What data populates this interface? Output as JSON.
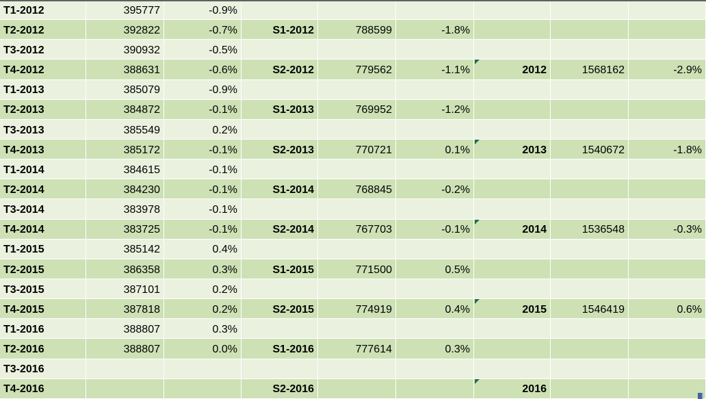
{
  "colors": {
    "row_light": "#EBF1DF",
    "row_dark": "#CDE1B5",
    "gridline": "#FFFFFF",
    "error_flag_green": "#1E7145",
    "top_edge_line": "#606060",
    "object_corner_blue": "#46619B",
    "object_corner_blue_light": "#9DB4D6",
    "text": "#000000"
  },
  "table": {
    "columns": [
      {
        "name": "quarter",
        "align": "left",
        "bold": true
      },
      {
        "name": "quarter-value",
        "align": "right",
        "bold": false
      },
      {
        "name": "quarter-pct",
        "align": "right",
        "bold": false
      },
      {
        "name": "semester",
        "align": "right",
        "bold": true
      },
      {
        "name": "semester-value",
        "align": "right",
        "bold": false
      },
      {
        "name": "semester-pct",
        "align": "right",
        "bold": false
      },
      {
        "name": "year",
        "align": "right",
        "bold": true
      },
      {
        "name": "year-value",
        "align": "right",
        "bold": false
      },
      {
        "name": "year-pct",
        "align": "right",
        "bold": false
      }
    ],
    "rows": [
      {
        "cells": [
          "T1-2012",
          "395777",
          "-0.9%",
          "",
          "",
          "",
          "",
          "",
          ""
        ],
        "year_flag": false
      },
      {
        "cells": [
          "T2-2012",
          "392822",
          "-0.7%",
          "S1-2012",
          "788599",
          "-1.8%",
          "",
          "",
          ""
        ],
        "year_flag": false
      },
      {
        "cells": [
          "T3-2012",
          "390932",
          "-0.5%",
          "",
          "",
          "",
          "",
          "",
          ""
        ],
        "year_flag": false
      },
      {
        "cells": [
          "T4-2012",
          "388631",
          "-0.6%",
          "S2-2012",
          "779562",
          "-1.1%",
          "2012",
          "1568162",
          "-2.9%"
        ],
        "year_flag": true
      },
      {
        "cells": [
          "T1-2013",
          "385079",
          "-0.9%",
          "",
          "",
          "",
          "",
          "",
          ""
        ],
        "year_flag": false
      },
      {
        "cells": [
          "T2-2013",
          "384872",
          "-0.1%",
          "S1-2013",
          "769952",
          "-1.2%",
          "",
          "",
          ""
        ],
        "year_flag": false
      },
      {
        "cells": [
          "T3-2013",
          "385549",
          "0.2%",
          "",
          "",
          "",
          "",
          "",
          ""
        ],
        "year_flag": false
      },
      {
        "cells": [
          "T4-2013",
          "385172",
          "-0.1%",
          "S2-2013",
          "770721",
          "0.1%",
          "2013",
          "1540672",
          "-1.8%"
        ],
        "year_flag": true
      },
      {
        "cells": [
          "T1-2014",
          "384615",
          "-0.1%",
          "",
          "",
          "",
          "",
          "",
          ""
        ],
        "year_flag": false
      },
      {
        "cells": [
          "T2-2014",
          "384230",
          "-0.1%",
          "S1-2014",
          "768845",
          "-0.2%",
          "",
          "",
          ""
        ],
        "year_flag": false
      },
      {
        "cells": [
          "T3-2014",
          "383978",
          "-0.1%",
          "",
          "",
          "",
          "",
          "",
          ""
        ],
        "year_flag": false
      },
      {
        "cells": [
          "T4-2014",
          "383725",
          "-0.1%",
          "S2-2014",
          "767703",
          "-0.1%",
          "2014",
          "1536548",
          "-0.3%"
        ],
        "year_flag": true
      },
      {
        "cells": [
          "T1-2015",
          "385142",
          "0.4%",
          "",
          "",
          "",
          "",
          "",
          ""
        ],
        "year_flag": false
      },
      {
        "cells": [
          "T2-2015",
          "386358",
          "0.3%",
          "S1-2015",
          "771500",
          "0.5%",
          "",
          "",
          ""
        ],
        "year_flag": false
      },
      {
        "cells": [
          "T3-2015",
          "387101",
          "0.2%",
          "",
          "",
          "",
          "",
          "",
          ""
        ],
        "year_flag": false
      },
      {
        "cells": [
          "T4-2015",
          "387818",
          "0.2%",
          "S2-2015",
          "774919",
          "0.4%",
          "2015",
          "1546419",
          "0.6%"
        ],
        "year_flag": true
      },
      {
        "cells": [
          "T1-2016",
          "388807",
          "0.3%",
          "",
          "",
          "",
          "",
          "",
          ""
        ],
        "year_flag": false
      },
      {
        "cells": [
          "T2-2016",
          "388807",
          "0.0%",
          "S1-2016",
          "777614",
          "0.3%",
          "",
          "",
          ""
        ],
        "year_flag": false
      },
      {
        "cells": [
          "T3-2016",
          "",
          "",
          "",
          "",
          "",
          "",
          "",
          ""
        ],
        "year_flag": false
      },
      {
        "cells": [
          "T4-2016",
          "",
          "",
          "S2-2016",
          "",
          "",
          "2016",
          "",
          ""
        ],
        "year_flag": true
      }
    ]
  }
}
